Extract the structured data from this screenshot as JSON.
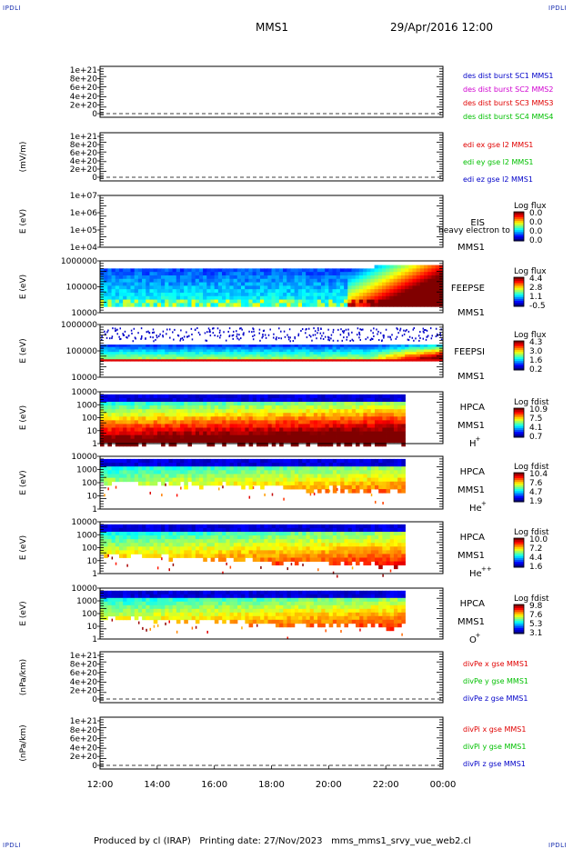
{
  "header": {
    "corner_label": "IPDLI",
    "spacecraft": "MMS1",
    "datetime": "29/Apr/2016 12:00"
  },
  "footer": {
    "produced_by": "Produced by cl (IRAP)",
    "printing_date": "Printing date: 27/Nov/2023",
    "filename": "mms_mms1_srvy_vue_web2.cl"
  },
  "colors": {
    "frame": "#000000",
    "blue": "#0000c8",
    "magenta": "#d000d0",
    "red": "#e00000",
    "green": "#00c000"
  },
  "chart_data": [
    {
      "id": "des-dist",
      "type": "line",
      "ylabel": "",
      "yticks": [
        "1e+21",
        "8e+20",
        "6e+20",
        "4e+20",
        "2e+20",
        "0"
      ],
      "dashed_zero": true,
      "legend": [
        {
          "text": "des dist burst SC1 MMS1",
          "color": "#0000c8"
        },
        {
          "text": "des dist burst SC2 MMS2",
          "color": "#d000d0"
        },
        {
          "text": "des dist burst SC3 MMS3",
          "color": "#e00000"
        },
        {
          "text": "des dist burst SC4 MMS4",
          "color": "#00c000"
        }
      ]
    },
    {
      "id": "edi-e",
      "type": "line",
      "ylabel": "(mV/m)",
      "yticks": [
        "1e+21",
        "8e+20",
        "6e+20",
        "4e+20",
        "2e+20",
        "0"
      ],
      "dashed_zero": true,
      "legend": [
        {
          "text": "edi ex gse l2 MMS1",
          "color": "#e00000"
        },
        {
          "text": "edi ey gse l2 MMS1",
          "color": "#00c000"
        },
        {
          "text": "edi ez gse l2 MMS1",
          "color": "#0000c8"
        }
      ]
    },
    {
      "id": "eis",
      "type": "heatmap",
      "ylabel": "E (eV)",
      "yticks": [
        "1e+07",
        "1e+06",
        "1e+05",
        "1e+04"
      ],
      "instrument": "EIS",
      "sub": "heavy electron to",
      "sc": "MMS1",
      "cbar_title": "Log flux",
      "cbar_ticks": [
        "0.0",
        "0.0",
        "0.0",
        "0.0"
      ],
      "data_coverage": [
        0,
        0
      ]
    },
    {
      "id": "feepse",
      "type": "heatmap",
      "ylabel": "E (eV)",
      "yticks": [
        "1000000",
        "100000",
        "10000"
      ],
      "instrument": "FEEPSE",
      "sc": "MMS1",
      "cbar_title": "Log flux",
      "cbar_ticks": [
        "4.4",
        "2.8",
        "1.1",
        "-0.5"
      ],
      "data_coverage": [
        0,
        1
      ]
    },
    {
      "id": "feepsi",
      "type": "heatmap",
      "ylabel": "E (eV)",
      "yticks": [
        "1000000",
        "100000",
        "10000"
      ],
      "instrument": "FEEPSI",
      "sc": "MMS1",
      "cbar_title": "Log flux",
      "cbar_ticks": [
        "4.3",
        "3.0",
        "1.6",
        "0.2"
      ],
      "data_coverage": [
        0,
        1
      ]
    },
    {
      "id": "hpca-h",
      "type": "heatmap",
      "ylabel": "E (eV)",
      "yticks": [
        "10000",
        "1000",
        "100",
        "10",
        "1"
      ],
      "instrument": "HPCA",
      "sc": "MMS1",
      "species": "H",
      "charge": "+",
      "cbar_title": "Log fdist",
      "cbar_ticks": [
        "10.9",
        "7.5",
        "4.1",
        "0.7"
      ],
      "data_coverage": [
        0,
        0.89
      ]
    },
    {
      "id": "hpca-he",
      "type": "heatmap",
      "ylabel": "E (eV)",
      "yticks": [
        "10000",
        "1000",
        "100",
        "10",
        "1"
      ],
      "instrument": "HPCA",
      "sc": "MMS1",
      "species": "He",
      "charge": "+",
      "cbar_title": "Log fdist",
      "cbar_ticks": [
        "10.4",
        "7.6",
        "4.7",
        "1.9"
      ],
      "data_coverage": [
        0,
        0.89
      ]
    },
    {
      "id": "hpca-hepp",
      "type": "heatmap",
      "ylabel": "E (eV)",
      "yticks": [
        "10000",
        "1000",
        "100",
        "10",
        "1"
      ],
      "instrument": "HPCA",
      "sc": "MMS1",
      "species": "He",
      "charge": "++",
      "cbar_title": "Log fdist",
      "cbar_ticks": [
        "10.0",
        "7.2",
        "4.4",
        "1.6"
      ],
      "data_coverage": [
        0,
        0.89
      ]
    },
    {
      "id": "hpca-o",
      "type": "heatmap",
      "ylabel": "E (eV)",
      "yticks": [
        "10000",
        "1000",
        "100",
        "10",
        "1"
      ],
      "instrument": "HPCA",
      "sc": "MMS1",
      "species": "O",
      "charge": "+",
      "cbar_title": "Log fdist",
      "cbar_ticks": [
        "9.8",
        "7.6",
        "5.3",
        "3.1"
      ],
      "data_coverage": [
        0,
        0.89
      ]
    },
    {
      "id": "divpe",
      "type": "line",
      "ylabel": "(nPa/km)",
      "yticks": [
        "1e+21",
        "8e+20",
        "6e+20",
        "4e+20",
        "2e+20",
        "0"
      ],
      "dashed_zero": true,
      "legend": [
        {
          "text": "divPe x gse MMS1",
          "color": "#e00000"
        },
        {
          "text": "divPe y gse MMS1",
          "color": "#00c000"
        },
        {
          "text": "divPe z gse MMS1",
          "color": "#0000c8"
        }
      ]
    },
    {
      "id": "divpi",
      "type": "line",
      "ylabel": "(nPa/km)",
      "yticks": [
        "1e+21",
        "8e+20",
        "6e+20",
        "4e+20",
        "2e+20",
        "0"
      ],
      "dashed_zero": true,
      "legend": [
        {
          "text": "divPi x gse MMS1",
          "color": "#e00000"
        },
        {
          "text": "divPi y gse MMS1",
          "color": "#00c000"
        },
        {
          "text": "divPi z gse MMS1",
          "color": "#0000c8"
        }
      ]
    }
  ],
  "x_axis": {
    "ticks": [
      "12:00",
      "14:00",
      "16:00",
      "18:00",
      "20:00",
      "22:00",
      "00:00"
    ]
  }
}
